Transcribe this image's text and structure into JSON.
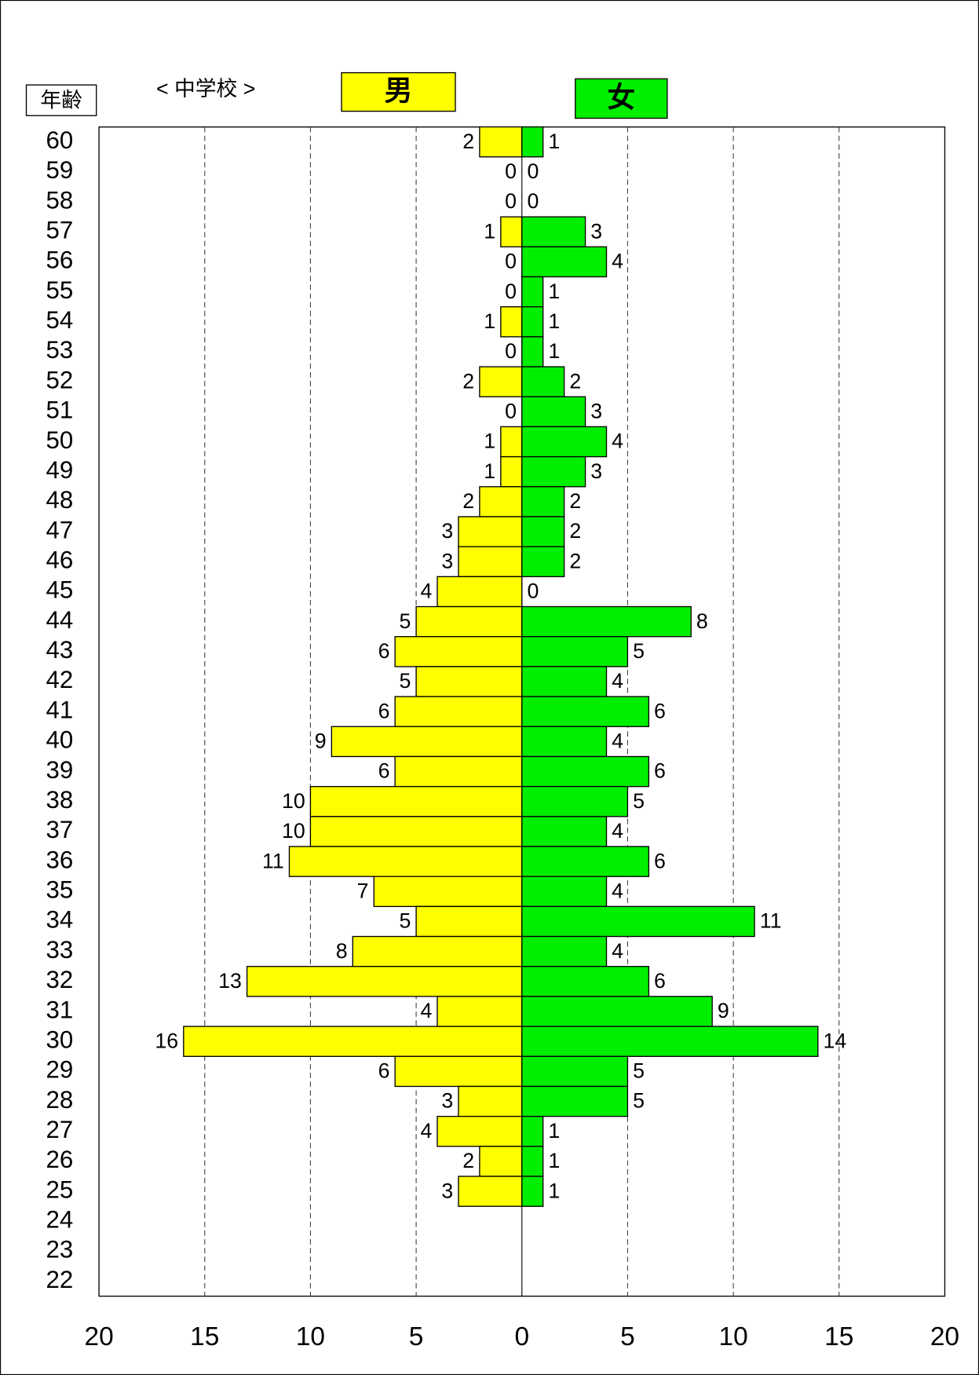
{
  "chart_data": {
    "type": "pyramid",
    "title": "< 中学校 >",
    "y_label": "年齢",
    "categories": [
      "60",
      "59",
      "58",
      "57",
      "56",
      "55",
      "54",
      "53",
      "52",
      "51",
      "50",
      "49",
      "48",
      "47",
      "46",
      "45",
      "44",
      "43",
      "42",
      "41",
      "40",
      "39",
      "38",
      "37",
      "36",
      "35",
      "34",
      "33",
      "32",
      "31",
      "30",
      "29",
      "28",
      "27",
      "26",
      "25",
      "24",
      "23",
      "22"
    ],
    "series": [
      {
        "name": "男",
        "color": "#ffff00",
        "side": "left",
        "values": [
          2,
          0,
          0,
          1,
          0,
          0,
          1,
          0,
          2,
          0,
          1,
          1,
          2,
          3,
          3,
          4,
          5,
          6,
          5,
          6,
          9,
          6,
          10,
          10,
          11,
          7,
          5,
          8,
          13,
          4,
          16,
          6,
          3,
          4,
          2,
          3,
          null,
          null,
          null
        ]
      },
      {
        "name": "女",
        "color": "#00ee00",
        "side": "right",
        "values": [
          1,
          0,
          0,
          3,
          4,
          1,
          1,
          1,
          2,
          3,
          4,
          3,
          2,
          2,
          2,
          0,
          8,
          5,
          4,
          6,
          4,
          6,
          5,
          4,
          6,
          4,
          11,
          4,
          6,
          9,
          14,
          5,
          5,
          1,
          1,
          1,
          null,
          null,
          null
        ]
      }
    ],
    "xlim": [
      0,
      20
    ],
    "xticks": [
      0,
      5,
      10,
      15,
      20
    ],
    "grid": true
  }
}
